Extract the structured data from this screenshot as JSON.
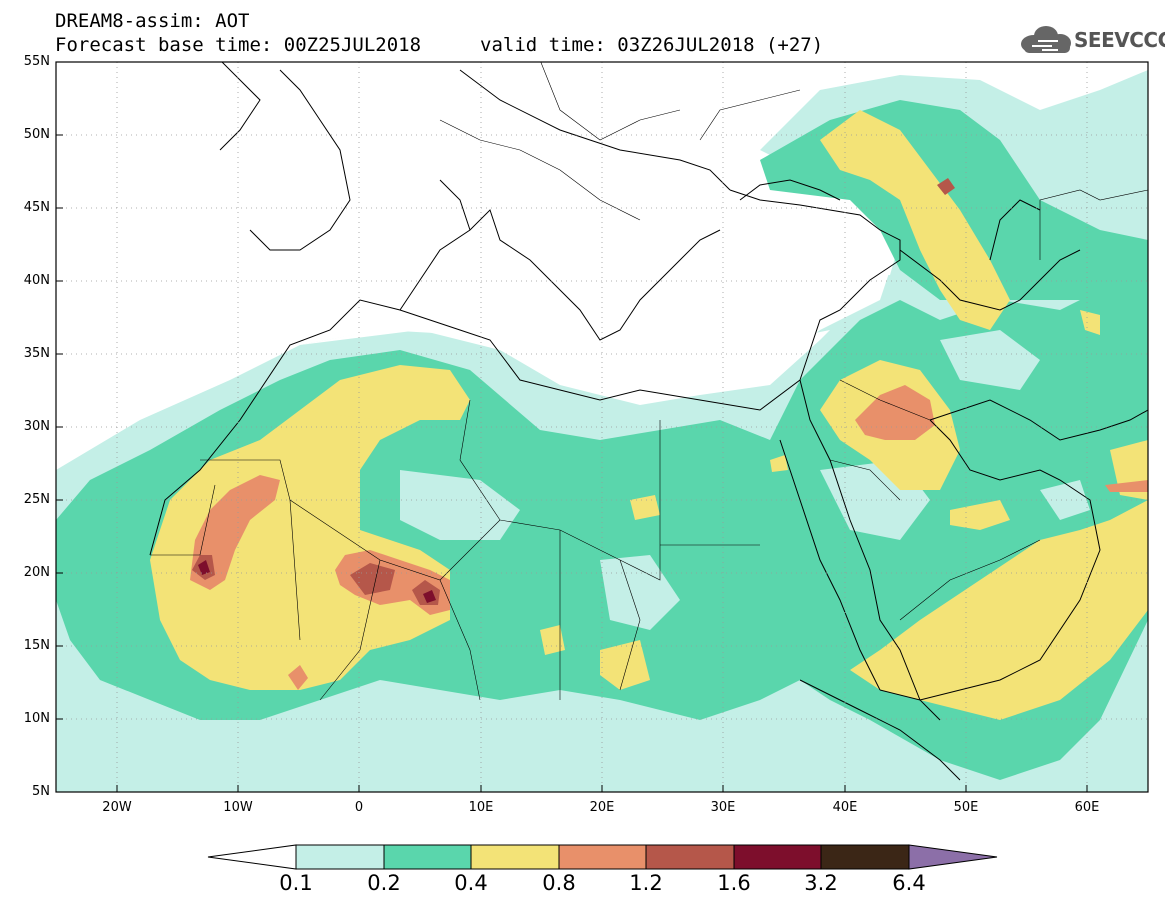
{
  "title_line1": "DREAM8-assim: AOT",
  "title_line2": "Forecast base time: 00Z25JUL2018",
  "title_valid": "valid time: 03Z26JUL2018 (+27)",
  "logo": {
    "text": "SEEVCCC",
    "icon": "cloud-icon"
  },
  "map": {
    "lon_range": [
      -25,
      65
    ],
    "lat_range": [
      5,
      55
    ],
    "lat_labels": [
      "55N",
      "50N",
      "45N",
      "40N",
      "35N",
      "30N",
      "25N",
      "20N",
      "15N",
      "10N",
      "5N"
    ],
    "lon_labels": [
      "20W",
      "10W",
      "0",
      "10E",
      "20E",
      "30E",
      "40E",
      "50E",
      "60E"
    ],
    "grid": "dotted"
  },
  "colorbar": {
    "labels": [
      "0.1",
      "0.2",
      "0.4",
      "0.8",
      "1.2",
      "1.6",
      "3.2",
      "6.4"
    ],
    "colors": {
      "c01": "#c4efe7",
      "c02": "#5ad6ac",
      "c04": "#f3e377",
      "c08": "#e8906a",
      "c12": "#b5574a",
      "c16": "#7d0e2c",
      "c32": "#3b2616",
      "c64": "#8c6fa8"
    }
  }
}
